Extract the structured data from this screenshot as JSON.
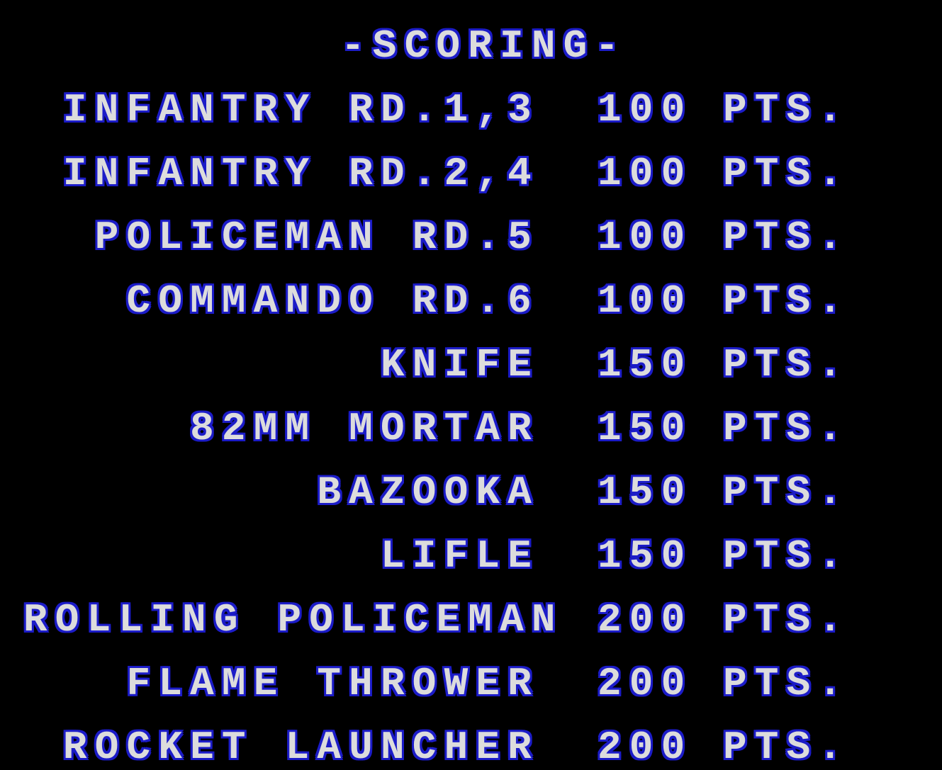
{
  "title": "-SCORING-",
  "rows": [
    {
      "name": "INFANTRY RD.1,3",
      "score": "100",
      "unit": "PTS."
    },
    {
      "name": "INFANTRY RD.2,4",
      "score": "100",
      "unit": "PTS."
    },
    {
      "name": "POLICEMAN RD.5",
      "score": "100",
      "unit": "PTS."
    },
    {
      "name": "COMMANDO RD.6",
      "score": "100",
      "unit": "PTS."
    },
    {
      "name": "KNIFE",
      "score": "150",
      "unit": "PTS."
    },
    {
      "name": "82MM MORTAR",
      "score": "150",
      "unit": "PTS."
    },
    {
      "name": "BAZOOKA",
      "score": "150",
      "unit": "PTS."
    },
    {
      "name": "LIFLE",
      "score": "150",
      "unit": "PTS."
    },
    {
      "name": "ROLLING POLICEMAN",
      "score": "200",
      "unit": "PTS."
    },
    {
      "name": "FLAME THROWER",
      "score": "200",
      "unit": "PTS."
    },
    {
      "name": "ROCKET LAUNCHER",
      "score": "200",
      "unit": "PTS."
    }
  ],
  "colors": {
    "background": "#000000",
    "text": "#dcdcdc",
    "outline": "#1c1cc8"
  }
}
